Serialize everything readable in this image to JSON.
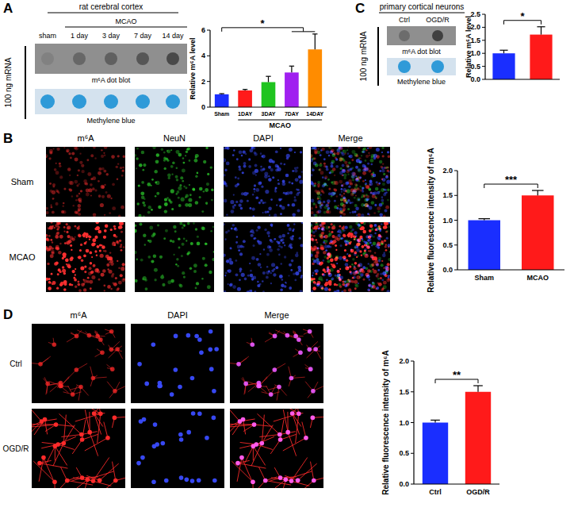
{
  "chart_data": [
    {
      "type": "bar",
      "ylabel": "Relative m⁶A level",
      "categories": [
        "Sham",
        "1DAY",
        "3DAY",
        "7DAY",
        "14DAY"
      ],
      "values": [
        1.0,
        1.3,
        1.95,
        2.7,
        4.5
      ],
      "errors": [
        0.05,
        0.08,
        0.45,
        0.5,
        1.2
      ],
      "colors": [
        "#1a2eff",
        "#ff1a1a",
        "#1fc41f",
        "#a020f0",
        "#ff8c00"
      ],
      "ylim": [
        0,
        6
      ],
      "yticks": [
        0,
        2,
        4,
        6
      ],
      "grid": false,
      "annotations": [
        "*",
        "MCAO"
      ]
    },
    {
      "type": "bar",
      "ylabel": "Relative m⁶A level",
      "categories": [
        "Ctrl",
        "OGD/R"
      ],
      "values": [
        1.0,
        1.72
      ],
      "errors": [
        0.12,
        0.3
      ],
      "colors": [
        "#1a2eff",
        "#ff1a1a"
      ],
      "ylim": [
        0,
        2.5
      ],
      "yticks": [
        {
          "value": 0,
          "label": "0.0"
        },
        {
          "value": 0.5,
          "label": "0.5"
        },
        {
          "value": 1,
          "label": "1.0"
        },
        {
          "value": 1.5,
          "label": "1.5"
        },
        {
          "value": 2,
          "label": "2.0"
        },
        {
          "value": 2.5,
          "label": "2.5"
        }
      ],
      "grid": false,
      "tick_labels": "y",
      "annotations": [
        "*"
      ]
    },
    {
      "type": "bar",
      "ylabel": "Relative fluorescence intensity of m⁶A",
      "categories": [
        "Sham",
        "MCAO"
      ],
      "values": [
        1.0,
        1.5
      ],
      "errors": [
        0.03,
        0.1
      ],
      "colors": [
        "#1a2eff",
        "#ff1a1a"
      ],
      "ylim": [
        0,
        2
      ],
      "yticks": [
        {
          "value": 0,
          "label": "0.0"
        },
        {
          "value": 0.5,
          "label": "0.5"
        },
        {
          "value": 1,
          "label": "1.0"
        },
        {
          "value": 1.5,
          "label": "1.5"
        },
        {
          "value": 2,
          "label": "2.0"
        }
      ],
      "grid": false,
      "annotations": [
        "***"
      ]
    },
    {
      "type": "bar",
      "ylabel": "Relative fluorescence intensity of m⁶A",
      "categories": [
        "Ctrl",
        "OGD/R"
      ],
      "values": [
        1.0,
        1.5
      ],
      "errors": [
        0.04,
        0.1
      ],
      "colors": [
        "#1a2eff",
        "#ff1a1a"
      ],
      "ylim": [
        0,
        2
      ],
      "yticks": [
        {
          "value": 0,
          "label": "0.0"
        },
        {
          "value": 0.5,
          "label": "0.5"
        },
        {
          "value": 1,
          "label": "1.0"
        },
        {
          "value": 1.5,
          "label": "1.5"
        },
        {
          "value": 2,
          "label": "2.0"
        }
      ],
      "grid": false,
      "annotations": [
        "**"
      ]
    }
  ],
  "figure": {
    "A": {
      "label": "A",
      "header": "rat cerebral cortex",
      "group": "MCAO",
      "lanes": [
        "sham",
        "1 day",
        "3 day",
        "7 day",
        "14 day"
      ],
      "side_label": "100 ng mRNA",
      "blots": [
        "m⁶A dot blot",
        "Methylene blue"
      ]
    },
    "B": {
      "label": "B",
      "columns": [
        "m⁶A",
        "NeuN",
        "DAPI",
        "Merge"
      ],
      "rows": [
        "Sham",
        "MCAO"
      ]
    },
    "C": {
      "label": "C",
      "header": "primary cortical neurons",
      "lanes": [
        "Ctrl",
        "OGD/R"
      ],
      "side_label": "100 ng mRNA",
      "blots": [
        "m⁶A dot blot",
        "Methylene blue"
      ]
    },
    "D": {
      "label": "D",
      "columns": [
        "m⁶A",
        "DAPI",
        "Merge"
      ],
      "rows": [
        "Ctrl",
        "OGD/R"
      ]
    }
  }
}
